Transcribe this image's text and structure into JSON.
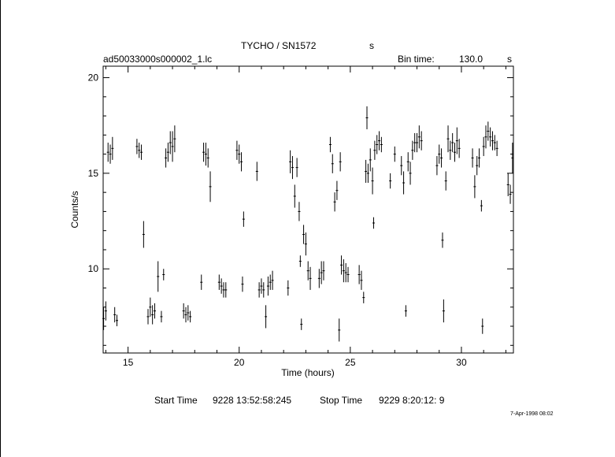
{
  "header": {
    "title": "TYCHO / SN1572",
    "title_unit": "s",
    "file_name": "ad50033000s000002_1.lc",
    "bin_time_label": "Bin time:",
    "bin_time_value": "130.0",
    "bin_time_unit": "s"
  },
  "footer": {
    "start_label": "Start Time",
    "start_value": "9228 13:52:58:245",
    "stop_label": "Stop Time",
    "stop_value": "9229  8:20:12:  9",
    "timestamp": "7-Apr-1998 08:02"
  },
  "chart_data": {
    "type": "scatter",
    "xlabel": "Time (hours)",
    "ylabel": "Counts/s",
    "xlim": [
      13.88,
      32.34
    ],
    "ylim": [
      5.6,
      20.6
    ],
    "x_ticks": [
      15,
      20,
      25,
      30
    ],
    "y_ticks": [
      10,
      15,
      20
    ],
    "grid": false,
    "marker": "vertical error bars",
    "series": [
      {
        "points": [
          {
            "x": 13.9,
            "y": 7.4,
            "err": 0.6
          },
          {
            "x": 14.0,
            "y": 7.8,
            "err": 0.5
          },
          {
            "x": 14.1,
            "y": 16.1,
            "err": 0.5
          },
          {
            "x": 14.2,
            "y": 16.0,
            "err": 0.5
          },
          {
            "x": 14.3,
            "y": 16.3,
            "err": 0.6
          },
          {
            "x": 14.4,
            "y": 7.6,
            "err": 0.4
          },
          {
            "x": 14.5,
            "y": 7.3,
            "err": 0.3
          },
          {
            "x": 15.4,
            "y": 16.4,
            "err": 0.4
          },
          {
            "x": 15.5,
            "y": 16.2,
            "err": 0.4
          },
          {
            "x": 15.6,
            "y": 16.1,
            "err": 0.4
          },
          {
            "x": 15.7,
            "y": 11.8,
            "err": 0.7
          },
          {
            "x": 15.9,
            "y": 7.5,
            "err": 0.4
          },
          {
            "x": 16.0,
            "y": 8.0,
            "err": 0.5
          },
          {
            "x": 16.1,
            "y": 7.6,
            "err": 0.5
          },
          {
            "x": 16.2,
            "y": 7.8,
            "err": 0.4
          },
          {
            "x": 16.35,
            "y": 9.6,
            "err": 0.8
          },
          {
            "x": 16.5,
            "y": 7.5,
            "err": 0.3
          },
          {
            "x": 16.6,
            "y": 9.7,
            "err": 0.3
          },
          {
            "x": 16.7,
            "y": 15.8,
            "err": 0.5
          },
          {
            "x": 16.8,
            "y": 16.1,
            "err": 0.5
          },
          {
            "x": 16.9,
            "y": 16.6,
            "err": 0.6
          },
          {
            "x": 17.0,
            "y": 16.4,
            "err": 0.8
          },
          {
            "x": 17.1,
            "y": 16.8,
            "err": 0.7
          },
          {
            "x": 17.5,
            "y": 7.8,
            "err": 0.4
          },
          {
            "x": 17.6,
            "y": 7.6,
            "err": 0.4
          },
          {
            "x": 17.7,
            "y": 7.7,
            "err": 0.4
          },
          {
            "x": 17.8,
            "y": 7.5,
            "err": 0.3
          },
          {
            "x": 18.3,
            "y": 9.3,
            "err": 0.4
          },
          {
            "x": 18.4,
            "y": 16.1,
            "err": 0.5
          },
          {
            "x": 18.5,
            "y": 16.0,
            "err": 0.6
          },
          {
            "x": 18.6,
            "y": 15.8,
            "err": 0.5
          },
          {
            "x": 18.7,
            "y": 14.3,
            "err": 0.8
          },
          {
            "x": 19.1,
            "y": 9.3,
            "err": 0.4
          },
          {
            "x": 19.2,
            "y": 9.1,
            "err": 0.4
          },
          {
            "x": 19.3,
            "y": 8.9,
            "err": 0.4
          },
          {
            "x": 19.4,
            "y": 8.9,
            "err": 0.4
          },
          {
            "x": 19.9,
            "y": 16.2,
            "err": 0.5
          },
          {
            "x": 20.0,
            "y": 16.0,
            "err": 0.5
          },
          {
            "x": 20.1,
            "y": 15.6,
            "err": 0.5
          },
          {
            "x": 20.15,
            "y": 9.2,
            "err": 0.4
          },
          {
            "x": 20.2,
            "y": 12.6,
            "err": 0.4
          },
          {
            "x": 20.8,
            "y": 15.1,
            "err": 0.5
          },
          {
            "x": 20.9,
            "y": 8.9,
            "err": 0.4
          },
          {
            "x": 21.0,
            "y": 9.1,
            "err": 0.4
          },
          {
            "x": 21.1,
            "y": 8.9,
            "err": 0.4
          },
          {
            "x": 21.2,
            "y": 7.5,
            "err": 0.6
          },
          {
            "x": 21.3,
            "y": 9.1,
            "err": 0.5
          },
          {
            "x": 21.4,
            "y": 9.3,
            "err": 0.4
          },
          {
            "x": 21.5,
            "y": 9.4,
            "err": 0.5
          },
          {
            "x": 22.2,
            "y": 9.0,
            "err": 0.4
          },
          {
            "x": 22.3,
            "y": 15.6,
            "err": 0.6
          },
          {
            "x": 22.4,
            "y": 15.3,
            "err": 0.6
          },
          {
            "x": 22.5,
            "y": 13.8,
            "err": 0.6
          },
          {
            "x": 22.6,
            "y": 15.3,
            "err": 0.5
          },
          {
            "x": 22.7,
            "y": 13.0,
            "err": 0.5
          },
          {
            "x": 22.75,
            "y": 10.4,
            "err": 0.3
          },
          {
            "x": 22.8,
            "y": 7.1,
            "err": 0.3
          },
          {
            "x": 22.9,
            "y": 11.8,
            "err": 0.5
          },
          {
            "x": 23.0,
            "y": 11.3,
            "err": 0.6
          },
          {
            "x": 23.1,
            "y": 9.9,
            "err": 0.5
          },
          {
            "x": 23.2,
            "y": 9.5,
            "err": 0.6
          },
          {
            "x": 23.6,
            "y": 9.5,
            "err": 0.5
          },
          {
            "x": 23.7,
            "y": 9.8,
            "err": 0.6
          },
          {
            "x": 23.8,
            "y": 9.9,
            "err": 0.5
          },
          {
            "x": 24.1,
            "y": 16.5,
            "err": 0.4
          },
          {
            "x": 24.2,
            "y": 15.5,
            "err": 0.5
          },
          {
            "x": 24.3,
            "y": 13.5,
            "err": 0.5
          },
          {
            "x": 24.4,
            "y": 14.1,
            "err": 0.5
          },
          {
            "x": 24.5,
            "y": 6.8,
            "err": 0.6
          },
          {
            "x": 24.55,
            "y": 15.6,
            "err": 0.5
          },
          {
            "x": 24.6,
            "y": 10.2,
            "err": 0.5
          },
          {
            "x": 24.7,
            "y": 9.9,
            "err": 0.6
          },
          {
            "x": 24.8,
            "y": 9.8,
            "err": 0.5
          },
          {
            "x": 24.9,
            "y": 9.7,
            "err": 0.4
          },
          {
            "x": 25.4,
            "y": 9.7,
            "err": 0.5
          },
          {
            "x": 25.5,
            "y": 9.4,
            "err": 0.5
          },
          {
            "x": 25.6,
            "y": 8.5,
            "err": 0.3
          },
          {
            "x": 25.7,
            "y": 15.1,
            "err": 0.6
          },
          {
            "x": 25.75,
            "y": 17.9,
            "err": 0.6
          },
          {
            "x": 25.8,
            "y": 15.0,
            "err": 0.5
          },
          {
            "x": 25.9,
            "y": 15.7,
            "err": 0.6
          },
          {
            "x": 26.0,
            "y": 14.6,
            "err": 0.7
          },
          {
            "x": 26.05,
            "y": 12.4,
            "err": 0.3
          },
          {
            "x": 26.1,
            "y": 16.2,
            "err": 0.5
          },
          {
            "x": 26.2,
            "y": 16.5,
            "err": 0.5
          },
          {
            "x": 26.3,
            "y": 16.7,
            "err": 0.5
          },
          {
            "x": 26.4,
            "y": 16.5,
            "err": 0.4
          },
          {
            "x": 26.8,
            "y": 14.6,
            "err": 0.4
          },
          {
            "x": 27.0,
            "y": 16.0,
            "err": 0.4
          },
          {
            "x": 27.3,
            "y": 15.4,
            "err": 0.5
          },
          {
            "x": 27.4,
            "y": 14.5,
            "err": 0.6
          },
          {
            "x": 27.5,
            "y": 7.8,
            "err": 0.3
          },
          {
            "x": 27.6,
            "y": 15.6,
            "err": 0.5
          },
          {
            "x": 27.7,
            "y": 15.0,
            "err": 0.6
          },
          {
            "x": 27.8,
            "y": 16.2,
            "err": 0.5
          },
          {
            "x": 27.9,
            "y": 16.6,
            "err": 0.5
          },
          {
            "x": 28.0,
            "y": 16.6,
            "err": 0.5
          },
          {
            "x": 28.1,
            "y": 16.9,
            "err": 0.6
          },
          {
            "x": 28.2,
            "y": 16.7,
            "err": 0.5
          },
          {
            "x": 28.9,
            "y": 15.4,
            "err": 0.5
          },
          {
            "x": 29.0,
            "y": 16.0,
            "err": 0.5
          },
          {
            "x": 29.1,
            "y": 15.8,
            "err": 0.5
          },
          {
            "x": 29.15,
            "y": 11.5,
            "err": 0.4
          },
          {
            "x": 29.2,
            "y": 7.8,
            "err": 0.6
          },
          {
            "x": 29.3,
            "y": 14.6,
            "err": 0.5
          },
          {
            "x": 29.4,
            "y": 16.8,
            "err": 0.7
          },
          {
            "x": 29.5,
            "y": 16.2,
            "err": 0.5
          },
          {
            "x": 29.6,
            "y": 16.6,
            "err": 0.5
          },
          {
            "x": 29.7,
            "y": 16.1,
            "err": 0.5
          },
          {
            "x": 29.8,
            "y": 16.7,
            "err": 0.7
          },
          {
            "x": 29.9,
            "y": 16.3,
            "err": 0.5
          },
          {
            "x": 30.5,
            "y": 15.8,
            "err": 0.5
          },
          {
            "x": 30.6,
            "y": 14.3,
            "err": 0.6
          },
          {
            "x": 30.7,
            "y": 15.4,
            "err": 0.5
          },
          {
            "x": 30.8,
            "y": 15.8,
            "err": 0.5
          },
          {
            "x": 30.9,
            "y": 13.3,
            "err": 0.3
          },
          {
            "x": 30.95,
            "y": 7.0,
            "err": 0.4
          },
          {
            "x": 31.0,
            "y": 16.4,
            "err": 0.5
          },
          {
            "x": 31.1,
            "y": 16.9,
            "err": 0.6
          },
          {
            "x": 31.2,
            "y": 17.2,
            "err": 0.5
          },
          {
            "x": 31.3,
            "y": 16.9,
            "err": 0.5
          },
          {
            "x": 31.4,
            "y": 16.7,
            "err": 0.5
          },
          {
            "x": 31.5,
            "y": 16.6,
            "err": 0.4
          },
          {
            "x": 31.6,
            "y": 16.3,
            "err": 0.4
          },
          {
            "x": 32.1,
            "y": 14.4,
            "err": 0.6
          },
          {
            "x": 32.2,
            "y": 13.9,
            "err": 0.5
          },
          {
            "x": 32.3,
            "y": 15.8,
            "err": 0.8
          }
        ]
      }
    ]
  }
}
